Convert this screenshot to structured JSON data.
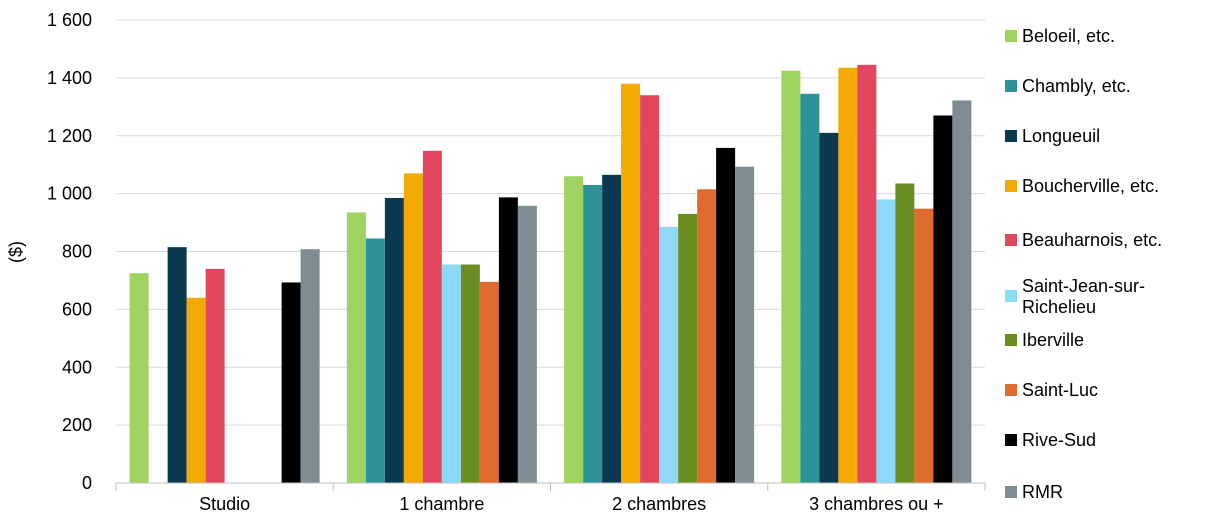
{
  "chart_data": {
    "type": "bar",
    "ylabel": "($)",
    "ylim": [
      0,
      1600
    ],
    "yticks": [
      "0",
      "200",
      "400",
      "600",
      "800",
      "1 000",
      "1 200",
      "1 400",
      "1 600"
    ],
    "grid": true,
    "legend_position": "right",
    "categories": [
      "Studio",
      "1 chambre",
      "2 chambres",
      "3 chambres ou +"
    ],
    "series": [
      {
        "name": "Beloeil, etc.",
        "color": "#9fd35f",
        "values": [
          725,
          935,
          1060,
          1425
        ]
      },
      {
        "name": "Chambly, etc.",
        "color": "#2e9399",
        "values": [
          null,
          845,
          1030,
          1345
        ]
      },
      {
        "name": "Longueuil",
        "color": "#0b3a50",
        "values": [
          815,
          985,
          1065,
          1210
        ]
      },
      {
        "name": "Boucherville, etc.",
        "color": "#f2a900",
        "values": [
          640,
          1070,
          1380,
          1435
        ]
      },
      {
        "name": "Beauharnois, etc.",
        "color": "#e2475f",
        "values": [
          740,
          1148,
          1340,
          1445
        ]
      },
      {
        "name": "Saint-Jean-sur-Richelieu",
        "color": "#8ed8f8",
        "values": [
          null,
          755,
          885,
          980
        ]
      },
      {
        "name": "Iberville",
        "color": "#6b8e23",
        "values": [
          null,
          755,
          930,
          1035
        ]
      },
      {
        "name": "Saint-Luc",
        "color": "#e06b2e",
        "values": [
          null,
          695,
          1015,
          948
        ]
      },
      {
        "name": "Rive-Sud",
        "color": "#000000",
        "values": [
          693,
          987,
          1158,
          1270
        ]
      },
      {
        "name": "RMR",
        "color": "#7f8c93",
        "values": [
          808,
          958,
          1093,
          1322
        ]
      }
    ]
  }
}
